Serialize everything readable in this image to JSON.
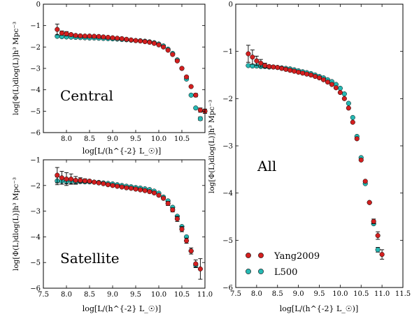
{
  "colors": {
    "yang": "#d31f1f",
    "l500": "#26b8b3",
    "edge": "#000000"
  },
  "chart_data": [
    {
      "id": "central",
      "type": "scatter",
      "annotation": "Central",
      "xlabel": "log[L/(h^{-2} L_☉)]",
      "ylabel": "log[Φ(L)dlog(L)]h³ Mpc⁻³",
      "xlim": [
        7.5,
        11.0
      ],
      "ylim": [
        -6,
        0
      ],
      "xticks": [
        {
          "v": 8.0,
          "t": "8.0"
        },
        {
          "v": 8.5,
          "t": "8.5"
        },
        {
          "v": 9.0,
          "t": "9.0"
        },
        {
          "v": 9.5,
          "t": "9.5"
        },
        {
          "v": 10.0,
          "t": "10.0"
        },
        {
          "v": 10.5,
          "t": "10.5"
        }
      ],
      "yticks": [
        {
          "v": 0,
          "t": "0"
        },
        {
          "v": -1,
          "t": "−1"
        },
        {
          "v": -2,
          "t": "−2"
        },
        {
          "v": -3,
          "t": "−3"
        },
        {
          "v": -4,
          "t": "−4"
        },
        {
          "v": -5,
          "t": "−5"
        },
        {
          "v": -6,
          "t": "−6"
        }
      ],
      "series": [
        {
          "name": "Yang2009",
          "color": "yang",
          "x": [
            7.8,
            7.9,
            8.0,
            8.1,
            8.2,
            8.3,
            8.4,
            8.5,
            8.6,
            8.7,
            8.8,
            8.9,
            9.0,
            9.1,
            9.2,
            9.3,
            9.4,
            9.5,
            9.6,
            9.7,
            9.8,
            9.9,
            10.0,
            10.1,
            10.2,
            10.3,
            10.4,
            10.5,
            10.6,
            10.7,
            10.8,
            10.9,
            11.0
          ],
          "y": [
            -1.18,
            -1.35,
            -1.38,
            -1.42,
            -1.46,
            -1.48,
            -1.49,
            -1.49,
            -1.5,
            -1.51,
            -1.53,
            -1.55,
            -1.57,
            -1.59,
            -1.61,
            -1.64,
            -1.67,
            -1.7,
            -1.72,
            -1.75,
            -1.78,
            -1.83,
            -1.9,
            -2.0,
            -2.15,
            -2.35,
            -2.65,
            -3.0,
            -3.4,
            -3.85,
            -4.25,
            -4.95,
            -5.0
          ],
          "err": [
            0.25,
            0.1,
            0.1,
            0.05,
            0,
            0,
            0,
            0,
            0,
            0,
            0,
            0,
            0,
            0,
            0,
            0,
            0,
            0,
            0,
            0,
            0,
            0,
            0,
            0,
            0,
            0,
            0,
            0,
            0,
            0,
            0.08,
            0.1,
            0.1
          ]
        },
        {
          "name": "L500",
          "color": "l500",
          "x": [
            7.8,
            7.9,
            8.0,
            8.1,
            8.2,
            8.3,
            8.4,
            8.5,
            8.6,
            8.7,
            8.8,
            8.9,
            9.0,
            9.1,
            9.2,
            9.3,
            9.4,
            9.5,
            9.6,
            9.7,
            9.8,
            9.9,
            10.0,
            10.1,
            10.2,
            10.3,
            10.4,
            10.5,
            10.6,
            10.7,
            10.8,
            10.9
          ],
          "y": [
            -1.5,
            -1.52,
            -1.53,
            -1.54,
            -1.55,
            -1.56,
            -1.57,
            -1.58,
            -1.58,
            -1.59,
            -1.6,
            -1.61,
            -1.62,
            -1.63,
            -1.65,
            -1.66,
            -1.68,
            -1.7,
            -1.71,
            -1.73,
            -1.76,
            -1.8,
            -1.86,
            -1.95,
            -2.1,
            -2.3,
            -2.6,
            -3.0,
            -3.5,
            -4.25,
            -4.85,
            -5.35
          ],
          "err": [
            0,
            0,
            0,
            0,
            0,
            0,
            0,
            0,
            0,
            0,
            0,
            0,
            0,
            0,
            0,
            0,
            0,
            0,
            0,
            0,
            0,
            0,
            0,
            0,
            0,
            0,
            0,
            0,
            0,
            0,
            0,
            0.08
          ]
        }
      ]
    },
    {
      "id": "satellite",
      "type": "scatter",
      "annotation": "Satellite",
      "xlabel": "log[L/(h^{-2} L_☉)]",
      "ylabel": "log[Φ(L)dlog(L)]h³ Mpc⁻³",
      "xlim": [
        7.5,
        11.0
      ],
      "ylim": [
        -6,
        -1
      ],
      "xticks": [
        {
          "v": 7.5,
          "t": "7.5"
        },
        {
          "v": 8.0,
          "t": "8.0"
        },
        {
          "v": 8.5,
          "t": "8.5"
        },
        {
          "v": 9.0,
          "t": "9.0"
        },
        {
          "v": 9.5,
          "t": "9.5"
        },
        {
          "v": 10.0,
          "t": "10.0"
        },
        {
          "v": 10.5,
          "t": "10.5"
        },
        {
          "v": 11.0,
          "t": "11.0"
        }
      ],
      "yticks": [
        {
          "v": -1,
          "t": "−1"
        },
        {
          "v": -2,
          "t": "−2"
        },
        {
          "v": -3,
          "t": "−3"
        },
        {
          "v": -4,
          "t": "−4"
        },
        {
          "v": -5,
          "t": "−5"
        },
        {
          "v": -6,
          "t": "−6"
        }
      ],
      "series": [
        {
          "name": "Yang2009",
          "color": "yang",
          "x": [
            7.8,
            7.9,
            8.0,
            8.1,
            8.2,
            8.3,
            8.4,
            8.5,
            8.6,
            8.7,
            8.8,
            8.9,
            9.0,
            9.1,
            9.2,
            9.3,
            9.4,
            9.5,
            9.6,
            9.7,
            9.8,
            9.9,
            10.0,
            10.1,
            10.2,
            10.3,
            10.4,
            10.5,
            10.6,
            10.7,
            10.8,
            10.9
          ],
          "y": [
            -1.6,
            -1.7,
            -1.75,
            -1.75,
            -1.8,
            -1.8,
            -1.82,
            -1.83,
            -1.87,
            -1.9,
            -1.93,
            -1.97,
            -2.0,
            -2.03,
            -2.06,
            -2.09,
            -2.11,
            -2.14,
            -2.17,
            -2.2,
            -2.24,
            -2.29,
            -2.38,
            -2.5,
            -2.7,
            -2.95,
            -3.3,
            -3.7,
            -4.15,
            -4.55,
            -5.05,
            -5.25
          ],
          "err": [
            0.3,
            0.25,
            0.25,
            0.2,
            0.15,
            0.1,
            0.08,
            0.05,
            0,
            0,
            0,
            0,
            0,
            0,
            0,
            0,
            0,
            0,
            0,
            0,
            0,
            0,
            0,
            0,
            0.08,
            0.08,
            0.1,
            0.1,
            0.1,
            0.12,
            0.15,
            0.4
          ]
        },
        {
          "name": "L500",
          "color": "l500",
          "x": [
            7.8,
            7.9,
            8.0,
            8.1,
            8.2,
            8.3,
            8.4,
            8.5,
            8.6,
            8.7,
            8.8,
            8.9,
            9.0,
            9.1,
            9.2,
            9.3,
            9.4,
            9.5,
            9.6,
            9.7,
            9.8,
            9.9,
            10.0,
            10.1,
            10.2,
            10.3,
            10.4,
            10.5,
            10.6,
            10.7,
            10.8
          ],
          "y": [
            -1.82,
            -1.83,
            -1.84,
            -1.84,
            -1.85,
            -1.85,
            -1.86,
            -1.86,
            -1.87,
            -1.88,
            -1.9,
            -1.92,
            -1.94,
            -1.97,
            -2.0,
            -2.03,
            -2.05,
            -2.08,
            -2.1,
            -2.13,
            -2.16,
            -2.22,
            -2.3,
            -2.45,
            -2.6,
            -2.85,
            -3.2,
            -3.6,
            -4.0,
            -4.55,
            -5.1
          ],
          "err": [
            0.15,
            0.12,
            0.1,
            0.1,
            0.08,
            0,
            0,
            0,
            0,
            0,
            0,
            0,
            0,
            0,
            0,
            0,
            0,
            0,
            0,
            0,
            0,
            0,
            0,
            0,
            0,
            0,
            0,
            0,
            0,
            0,
            0.08
          ]
        }
      ]
    },
    {
      "id": "all",
      "type": "scatter",
      "annotation": "All",
      "xlabel": "log[L/(h^{-2} L_☉)]",
      "ylabel": "log[Φ(L)dlog(L)]h³ Mpc⁻³",
      "xlim": [
        7.5,
        11.5
      ],
      "ylim": [
        -6,
        0
      ],
      "xticks": [
        {
          "v": 7.5,
          "t": "7.5"
        },
        {
          "v": 8.0,
          "t": "8.0"
        },
        {
          "v": 8.5,
          "t": "8.5"
        },
        {
          "v": 9.0,
          "t": "9.0"
        },
        {
          "v": 9.5,
          "t": "9.5"
        },
        {
          "v": 10.0,
          "t": "10.0"
        },
        {
          "v": 10.5,
          "t": "10.5"
        },
        {
          "v": 11.0,
          "t": "11.0"
        },
        {
          "v": 11.5,
          "t": "11.5"
        }
      ],
      "yticks": [
        {
          "v": 0,
          "t": "0"
        },
        {
          "v": -1,
          "t": "−1"
        },
        {
          "v": -2,
          "t": "−2"
        },
        {
          "v": -3,
          "t": "−3"
        },
        {
          "v": -4,
          "t": "−4"
        },
        {
          "v": -5,
          "t": "−5"
        },
        {
          "v": -6,
          "t": "−6"
        }
      ],
      "legend": {
        "position": "bottom-left",
        "entries": [
          "Yang2009",
          "L500"
        ]
      },
      "series": [
        {
          "name": "Yang2009",
          "color": "yang",
          "x": [
            7.8,
            7.9,
            8.0,
            8.1,
            8.2,
            8.3,
            8.4,
            8.5,
            8.6,
            8.7,
            8.8,
            8.9,
            9.0,
            9.1,
            9.2,
            9.3,
            9.4,
            9.5,
            9.6,
            9.7,
            9.8,
            9.9,
            10.0,
            10.1,
            10.2,
            10.3,
            10.4,
            10.5,
            10.6,
            10.7,
            10.8,
            10.9,
            11.0
          ],
          "y": [
            -1.05,
            -1.12,
            -1.2,
            -1.25,
            -1.3,
            -1.32,
            -1.33,
            -1.34,
            -1.36,
            -1.38,
            -1.4,
            -1.42,
            -1.44,
            -1.46,
            -1.48,
            -1.5,
            -1.53,
            -1.56,
            -1.6,
            -1.65,
            -1.7,
            -1.77,
            -1.87,
            -2.0,
            -2.2,
            -2.5,
            -2.85,
            -3.3,
            -3.75,
            -4.2,
            -4.6,
            -4.9,
            -5.3
          ],
          "err": [
            0.18,
            0.15,
            0.1,
            0.08,
            0.05,
            0,
            0,
            0,
            0,
            0,
            0,
            0,
            0,
            0,
            0,
            0,
            0,
            0,
            0,
            0,
            0,
            0,
            0,
            0,
            0,
            0,
            0,
            0,
            0,
            0,
            0.05,
            0.08,
            0.1
          ]
        },
        {
          "name": "L500",
          "color": "l500",
          "x": [
            7.8,
            7.9,
            8.0,
            8.1,
            8.2,
            8.3,
            8.4,
            8.5,
            8.6,
            8.7,
            8.8,
            8.9,
            9.0,
            9.1,
            9.2,
            9.3,
            9.4,
            9.5,
            9.6,
            9.7,
            9.8,
            9.9,
            10.0,
            10.1,
            10.2,
            10.3,
            10.4,
            10.5,
            10.6,
            10.7,
            10.8,
            10.9
          ],
          "y": [
            -1.3,
            -1.31,
            -1.31,
            -1.32,
            -1.32,
            -1.33,
            -1.33,
            -1.34,
            -1.35,
            -1.36,
            -1.37,
            -1.39,
            -1.41,
            -1.43,
            -1.45,
            -1.47,
            -1.5,
            -1.53,
            -1.56,
            -1.6,
            -1.64,
            -1.7,
            -1.78,
            -1.9,
            -2.1,
            -2.4,
            -2.8,
            -3.25,
            -3.8,
            -4.2,
            -4.65,
            -5.2
          ],
          "err": [
            0,
            0,
            0,
            0,
            0,
            0,
            0,
            0,
            0,
            0,
            0,
            0,
            0,
            0,
            0,
            0,
            0,
            0,
            0,
            0,
            0,
            0,
            0,
            0,
            0,
            0,
            0,
            0,
            0,
            0,
            0,
            0.05
          ]
        }
      ]
    }
  ]
}
